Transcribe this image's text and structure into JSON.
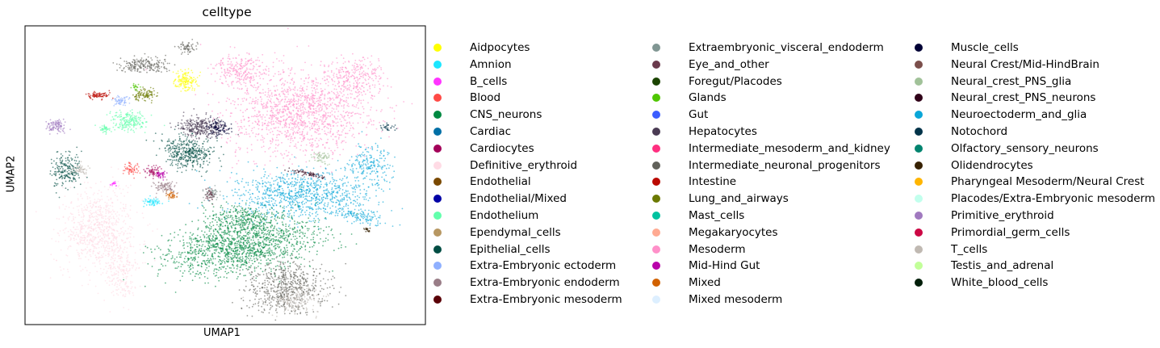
{
  "chart_data": {
    "type": "scatter",
    "title": "celltype",
    "xlabel": "UMAP1",
    "ylabel": "UMAP2",
    "ticks": "none",
    "legend": "right, outside plot, 3 columns",
    "categories": [
      {
        "name": "Aidpocytes",
        "color": "#ffff00"
      },
      {
        "name": "Amnion",
        "color": "#1ce6ff"
      },
      {
        "name": "B_cells",
        "color": "#ff34ff"
      },
      {
        "name": "Blood",
        "color": "#ff4a46"
      },
      {
        "name": "CNS_neurons",
        "color": "#008941"
      },
      {
        "name": "Cardiac",
        "color": "#006fa6"
      },
      {
        "name": "Cardiocytes",
        "color": "#a30059"
      },
      {
        "name": "Definitive_erythroid",
        "color": "#ffdbe5"
      },
      {
        "name": "Endothelial",
        "color": "#7a4900"
      },
      {
        "name": "Endothelial/Mixed",
        "color": "#0000a6"
      },
      {
        "name": "Endothelium",
        "color": "#63ffac"
      },
      {
        "name": "Ependymal_cells",
        "color": "#b79762"
      },
      {
        "name": "Epithelial_cells",
        "color": "#004d43"
      },
      {
        "name": "Extra-Embryonic ectoderm",
        "color": "#8fb0ff"
      },
      {
        "name": "Extra-Embryonic endoderm",
        "color": "#997d87"
      },
      {
        "name": "Extra-Embryonic mesoderm",
        "color": "#5a0007"
      },
      {
        "name": "Extraembryonic_visceral_endoderm",
        "color": "#809693"
      },
      {
        "name": "Eye_and_other",
        "color": "#6a3a4c"
      },
      {
        "name": "Foregut/Placodes",
        "color": "#1b4400"
      },
      {
        "name": "Glands",
        "color": "#4fc601"
      },
      {
        "name": "Gut",
        "color": "#3b5dff"
      },
      {
        "name": "Hepatocytes",
        "color": "#4a3b53"
      },
      {
        "name": "Intermediate_mesoderm_and_kidney",
        "color": "#ff2f80"
      },
      {
        "name": "Intermediate_neuronal_progenitors",
        "color": "#61615a"
      },
      {
        "name": "Intestine",
        "color": "#ba0900"
      },
      {
        "name": "Lung_and_airways",
        "color": "#6b7900"
      },
      {
        "name": "Mast_cells",
        "color": "#00c2a0"
      },
      {
        "name": "Megakaryocytes",
        "color": "#ffaa92"
      },
      {
        "name": "Mesoderm",
        "color": "#ff90c9"
      },
      {
        "name": "Mid-Hind Gut",
        "color": "#b903aa"
      },
      {
        "name": "Mixed",
        "color": "#d16100"
      },
      {
        "name": "Mixed mesoderm",
        "color": "#ddefff"
      },
      {
        "name": "Muscle_cells",
        "color": "#000035"
      },
      {
        "name": "Neural Crest/Mid-HindBrain",
        "color": "#7b4f4b"
      },
      {
        "name": "Neural_crest_PNS_glia",
        "color": "#a1c299"
      },
      {
        "name": "Neural_crest_PNS_neurons",
        "color": "#300018"
      },
      {
        "name": "Neuroectoderm_and_glia",
        "color": "#0aa6d8"
      },
      {
        "name": "Notochord",
        "color": "#013349"
      },
      {
        "name": "Olfactory_sensory_neurons",
        "color": "#00846f"
      },
      {
        "name": "Olidendrocytes",
        "color": "#372101"
      },
      {
        "name": "Pharyngeal Mesoderm/Neural Crest",
        "color": "#ffb500"
      },
      {
        "name": "Placodes/Extra-Embryonic mesoderm",
        "color": "#c2ffed"
      },
      {
        "name": "Primitive_erythroid",
        "color": "#a079bf"
      },
      {
        "name": "Primordial_germ_cells",
        "color": "#cc0744"
      },
      {
        "name": "T_cells",
        "color": "#c0b9b2"
      },
      {
        "name": "Testis_and_adrenal",
        "color": "#c2ff99"
      },
      {
        "name": "White_blood_cells",
        "color": "#001e09"
      }
    ]
  }
}
